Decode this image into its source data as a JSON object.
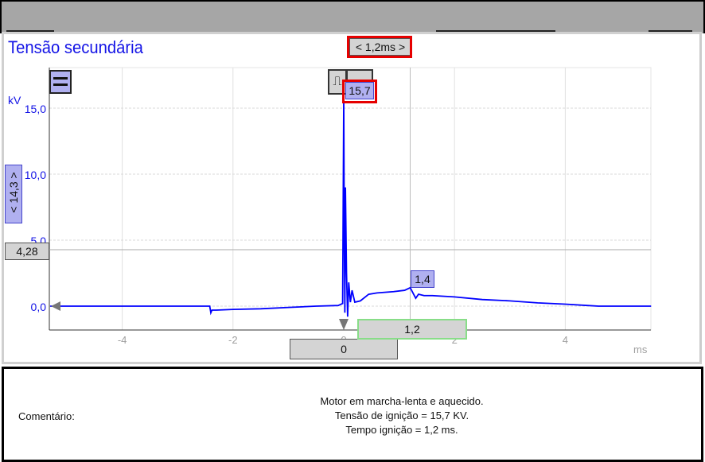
{
  "chart_data": {
    "type": "line",
    "title": "Tensão secundária",
    "xlabel": "ms",
    "ylabel": "kV",
    "xlim": [
      -5.3,
      5.55
    ],
    "ylim": [
      -1.8,
      18.0
    ],
    "x_ticks": [
      -4,
      -2,
      0,
      2,
      4
    ],
    "x_tick_labels": [
      "-4",
      "-2",
      "0",
      "2",
      "4"
    ],
    "y_ticks": [
      0,
      5,
      10,
      15
    ],
    "y_tick_labels": [
      "0,0",
      "5,0",
      "10,0",
      "15,0"
    ],
    "grid": true,
    "series": [
      {
        "color": "#0000ff",
        "x": [
          -5.3,
          -4.5,
          -3.5,
          -2.6,
          -2.42,
          -2.4,
          -2.38,
          -2.3,
          -2.0,
          -1.5,
          -1.0,
          -0.5,
          -0.1,
          -0.02,
          0.0,
          0.01,
          0.02,
          0.03,
          0.05,
          0.07,
          0.09,
          0.12,
          0.15,
          0.2,
          0.3,
          0.45,
          0.6,
          0.9,
          1.1,
          1.2,
          1.25,
          1.3,
          1.35,
          1.45,
          1.6,
          2.0,
          2.5,
          3.0,
          3.5,
          4.0,
          4.4,
          4.6,
          5.0,
          5.55
        ],
        "y": [
          0.0,
          0.0,
          0.0,
          0.0,
          0.0,
          -0.5,
          -0.3,
          -0.3,
          -0.25,
          -0.2,
          -0.1,
          0.0,
          0.05,
          0.2,
          15.7,
          5.0,
          -0.5,
          9.0,
          2.5,
          -0.8,
          1.8,
          0.3,
          1.2,
          0.3,
          0.4,
          0.9,
          1.0,
          1.1,
          1.2,
          1.4,
          1.0,
          0.6,
          0.9,
          0.8,
          0.8,
          0.7,
          0.5,
          0.4,
          0.25,
          0.15,
          0.05,
          0.0,
          0.0,
          0.0
        ]
      }
    ],
    "annotations": {
      "peak_label": "15,7",
      "second_peak_label": "1,4",
      "time_span_label": "< 1,2ms >",
      "voltage_span_label": "< 14,3 >",
      "horizontal_cursor_value": 4.28,
      "horizontal_cursor_label": "4,28",
      "cursor_zero_label": "0",
      "cursor_time_label": "1,2",
      "cursor_time_value": 1.2
    }
  },
  "comment": {
    "label": "Comentário:",
    "lines": [
      "Motor em marcha-lenta e aquecido.",
      "Tensão de ignição = 15,7 KV.",
      "Tempo ignição = 1,2 ms."
    ]
  },
  "colors": {
    "trace": "#0000ff",
    "highlight": "#e60000",
    "cursor_box": "#88dd88",
    "label_bg": "#b0b0f0"
  }
}
